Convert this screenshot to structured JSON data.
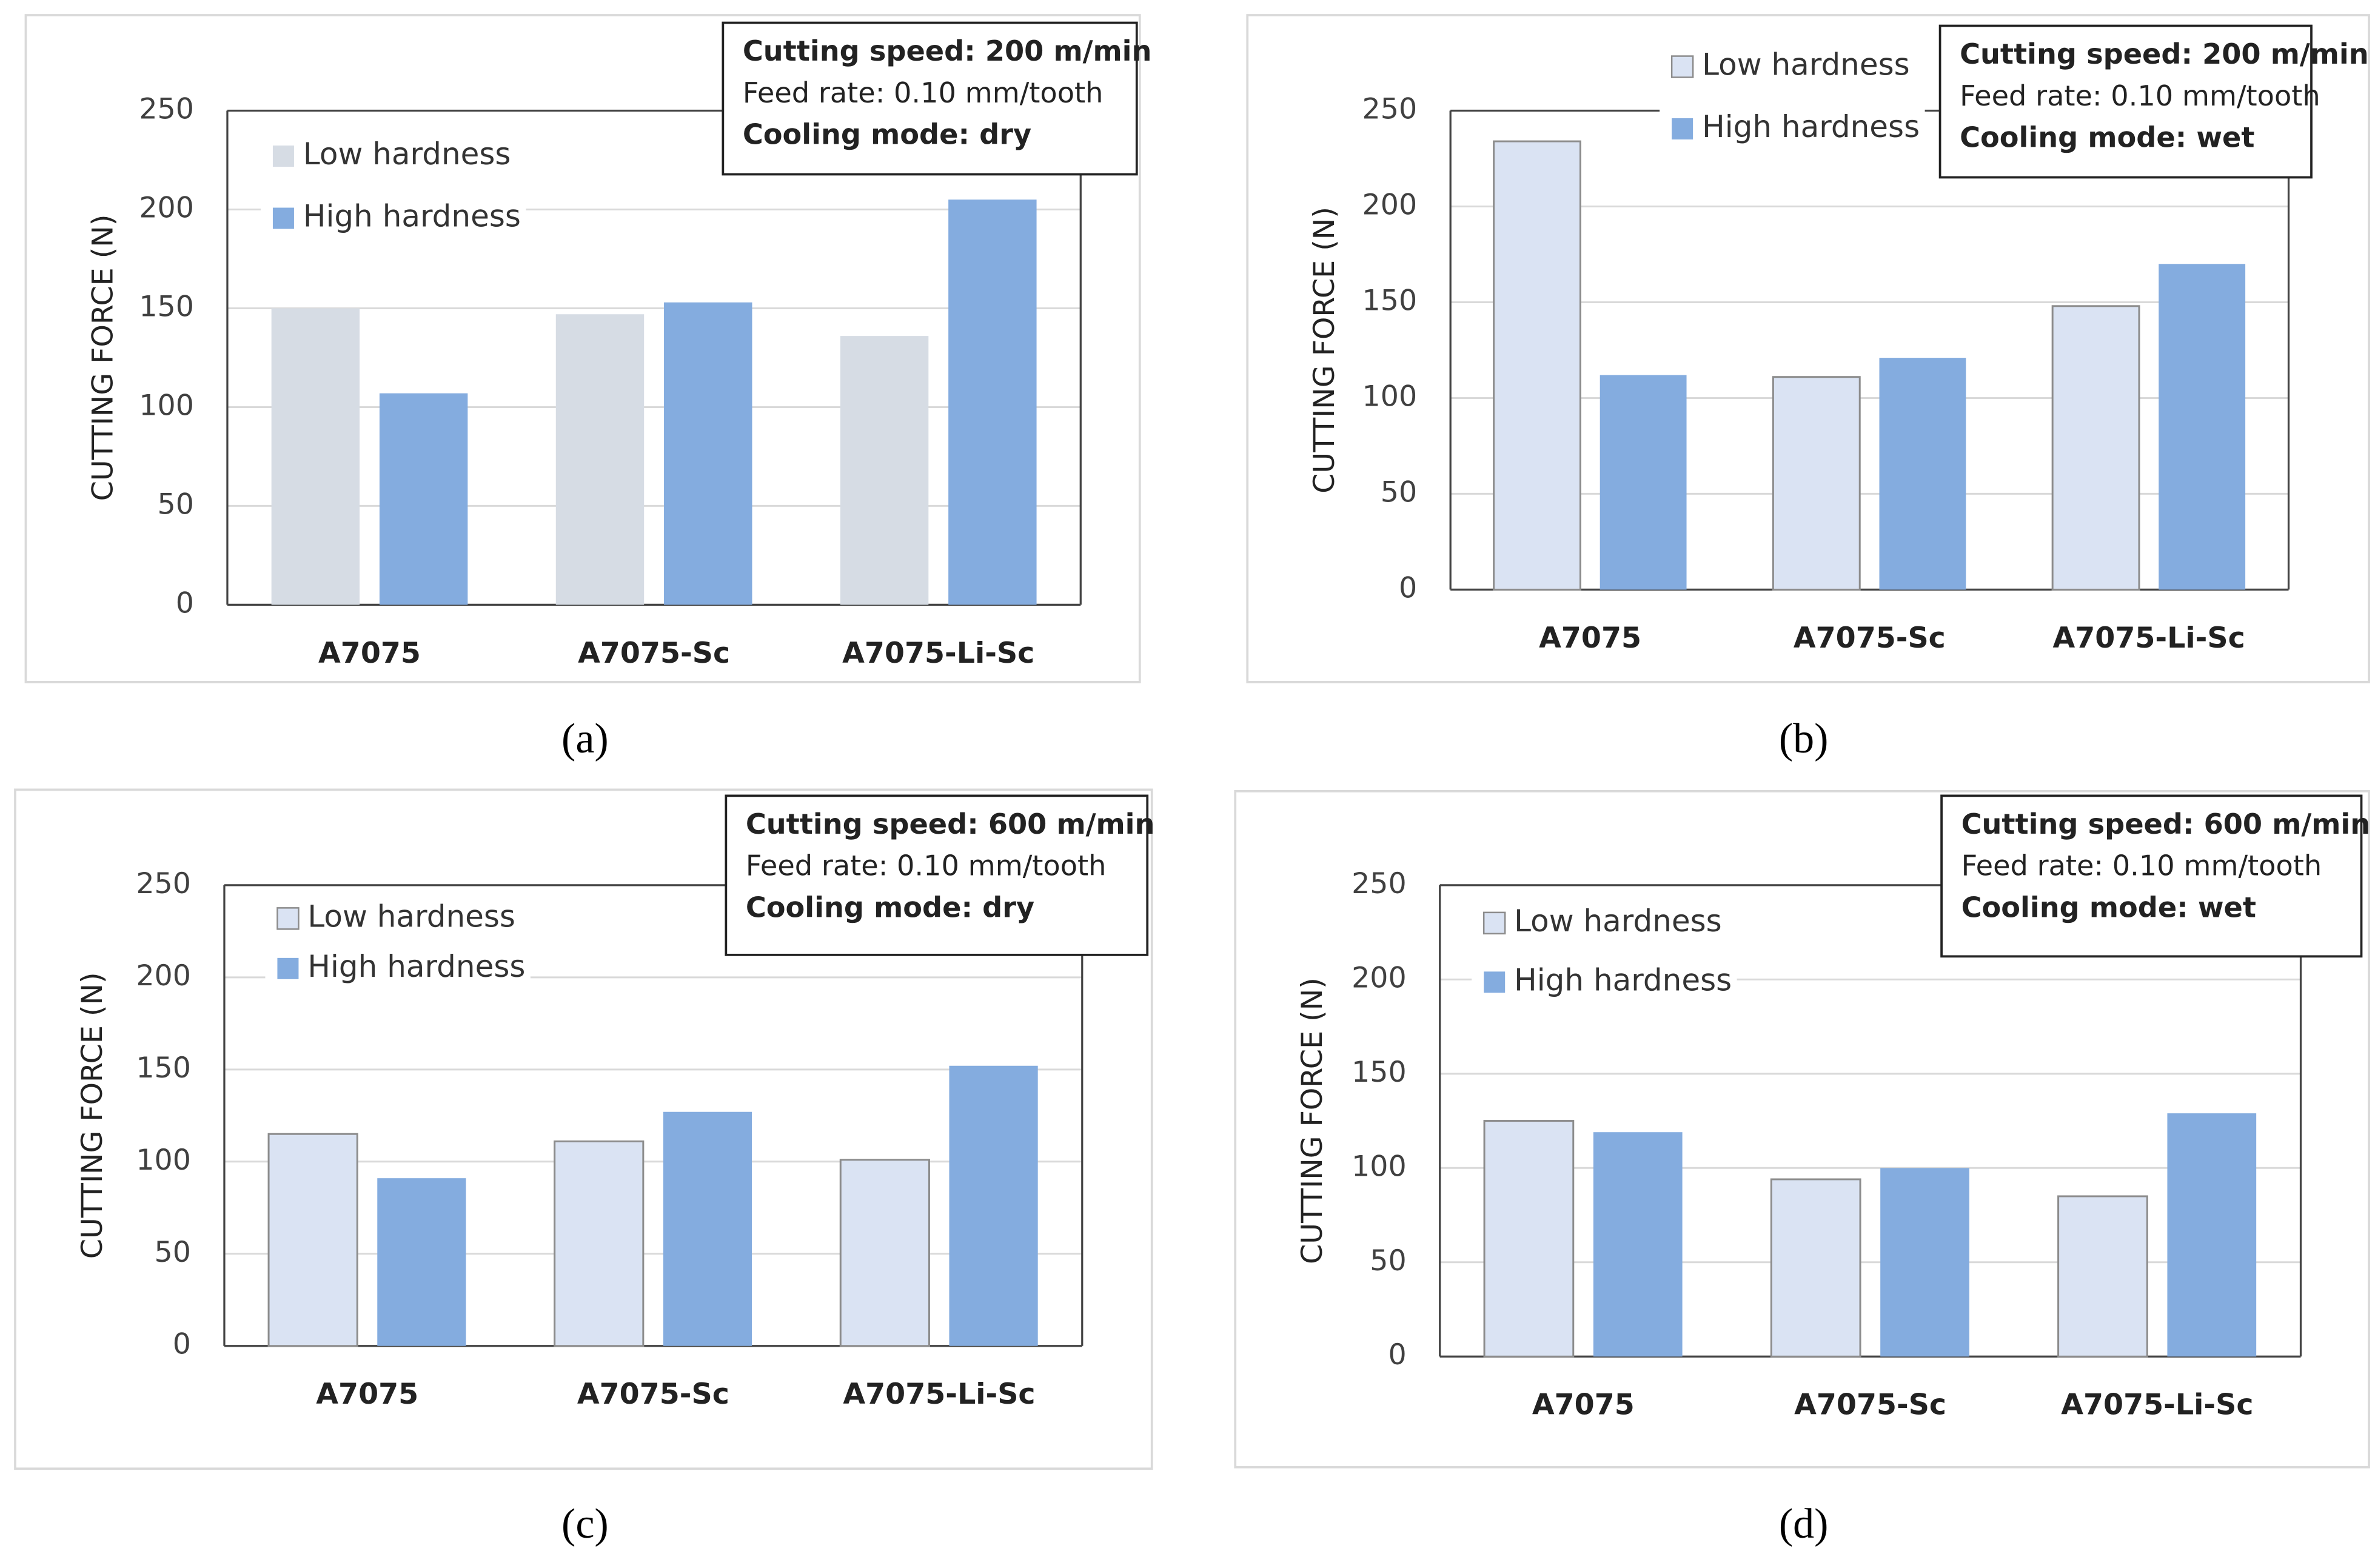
{
  "chart_data": [
    {
      "type": "bar",
      "caption": "(a)",
      "y_label": "CUTTING FORCE (N)",
      "annotations": [
        "Cutting speed: 200 m/min",
        "Feed rate: 0.10 mm/tooth",
        "Cooling mode: dry"
      ],
      "categories": [
        "A7075",
        "A7075-Sc",
        "A7075-Li-Sc"
      ],
      "series": [
        {
          "name": "Low hardness",
          "color": "#d6dce4",
          "values": [
            150,
            147,
            136
          ]
        },
        {
          "name": "High hardness",
          "color": "#84acdf",
          "values": [
            107,
            153,
            205
          ]
        }
      ],
      "ylim": [
        0,
        250
      ],
      "yticks": [
        0,
        50,
        100,
        150,
        200,
        250
      ],
      "grid": true
    },
    {
      "type": "bar",
      "caption": "(b)",
      "y_label": "CUTTING FORCE (N)",
      "annotations": [
        "Cutting speed: 200 m/min",
        "Feed rate: 0.10 mm/tooth",
        "Cooling mode: wet"
      ],
      "categories": [
        "A7075",
        "A7075-Sc",
        "A7075-Li-Sc"
      ],
      "series": [
        {
          "name": "Low hardness",
          "color": "#dae3f3",
          "values": [
            234,
            111,
            148
          ]
        },
        {
          "name": "High hardness",
          "color": "#84acdf",
          "values": [
            112,
            121,
            170
          ]
        }
      ],
      "ylim": [
        0,
        250
      ],
      "yticks": [
        0,
        50,
        100,
        150,
        200,
        250
      ],
      "grid": true
    },
    {
      "type": "bar",
      "caption": "(c)",
      "y_label": "CUTTING FORCE (N)",
      "annotations": [
        "Cutting speed: 600 m/min",
        "Feed rate: 0.10 mm/tooth",
        "Cooling mode: dry"
      ],
      "categories": [
        "A7075",
        "A7075-Sc",
        "A7075-Li-Sc"
      ],
      "series": [
        {
          "name": "Low hardness",
          "color": "#dae3f3",
          "values": [
            115,
            111,
            101
          ]
        },
        {
          "name": "High hardness",
          "color": "#84acdf",
          "values": [
            91,
            127,
            152
          ]
        }
      ],
      "ylim": [
        0,
        250
      ],
      "yticks": [
        0,
        50,
        100,
        150,
        200,
        250
      ],
      "grid": true
    },
    {
      "type": "bar",
      "caption": "(d)",
      "y_label": "CUTTING FORCE (N)",
      "annotations": [
        "Cutting speed: 600 m/min",
        "Feed rate: 0.10 mm/tooth",
        "Cooling mode: wet"
      ],
      "categories": [
        "A7075",
        "A7075-Sc",
        "A7075-Li-Sc"
      ],
      "series": [
        {
          "name": "Low hardness",
          "color": "#dae3f3",
          "values": [
            125,
            94,
            85
          ]
        },
        {
          "name": "High hardness",
          "color": "#84acdf",
          "values": [
            119,
            100,
            129
          ]
        }
      ],
      "ylim": [
        0,
        250
      ],
      "yticks": [
        0,
        50,
        100,
        150,
        200,
        250
      ],
      "grid": true
    }
  ]
}
